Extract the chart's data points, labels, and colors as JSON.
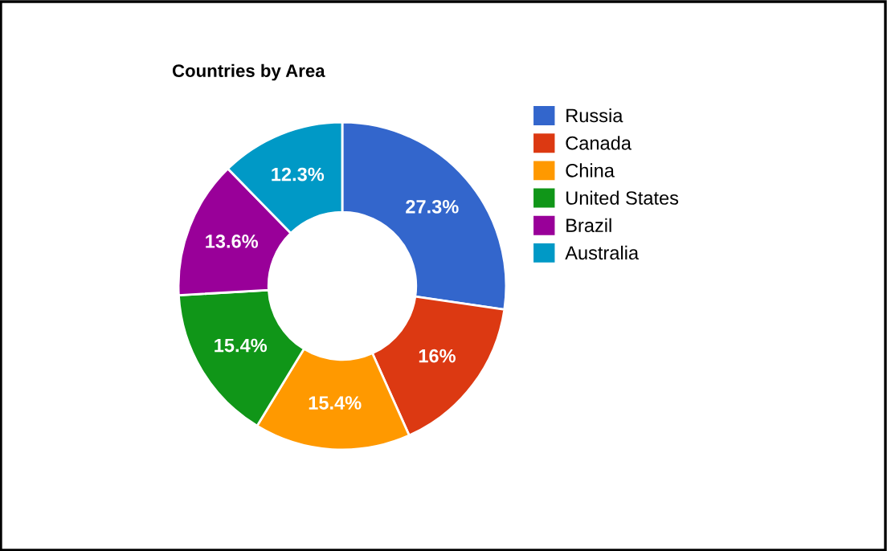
{
  "chart_data": {
    "type": "donut",
    "title": "Countries by Area",
    "categories": [
      "Russia",
      "Canada",
      "China",
      "United States",
      "Brazil",
      "Australia"
    ],
    "values": [
      27.3,
      16,
      15.4,
      15.4,
      13.6,
      12.3
    ],
    "colors": [
      "#3366cc",
      "#dc3912",
      "#ff9900",
      "#109618",
      "#990099",
      "#0099c6"
    ],
    "value_labels": [
      "27.3%",
      "16%",
      "15.4%",
      "15.4%",
      "13.6%",
      "12.3%"
    ],
    "legend": "right"
  }
}
